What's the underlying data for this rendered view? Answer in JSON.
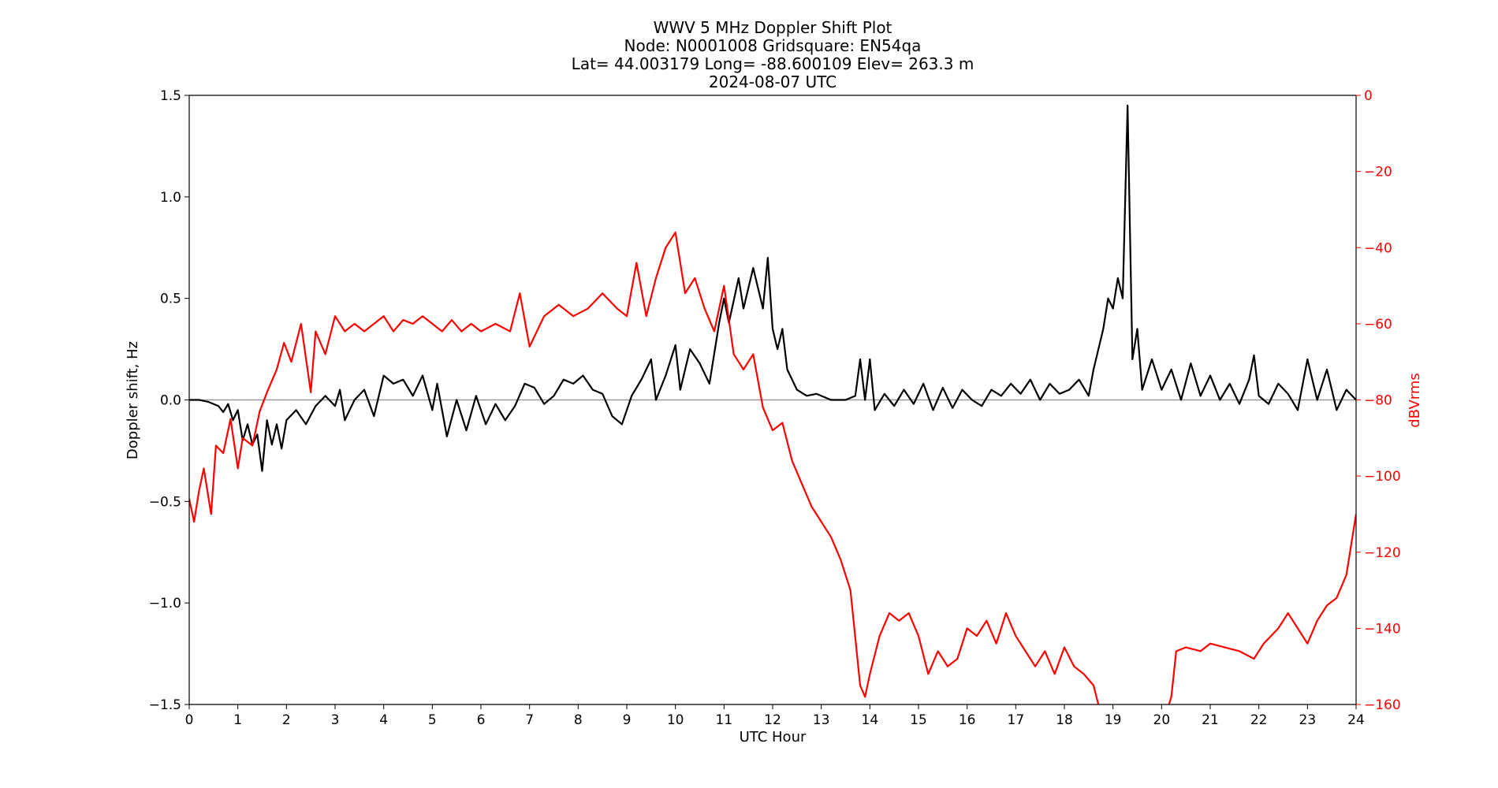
{
  "chart_data": {
    "type": "line",
    "title_lines": [
      "WWV 5 MHz Doppler Shift Plot",
      "Node:  N0001008     Gridsquare:  EN54qa",
      "Lat= 44.003179    Long= -88.600109    Elev= 263.3 m",
      "2024-08-07  UTC"
    ],
    "xlabel": "UTC Hour",
    "ylabel_left": "Doppler shift, Hz",
    "ylabel_right": "dBVrms",
    "xlim": [
      0,
      24
    ],
    "ylim_left": [
      -1.5,
      1.5
    ],
    "ylim_right": [
      -160,
      0
    ],
    "x_ticks": [
      "0",
      "1",
      "2",
      "3",
      "4",
      "5",
      "6",
      "7",
      "8",
      "9",
      "10",
      "11",
      "12",
      "13",
      "14",
      "15",
      "16",
      "17",
      "18",
      "19",
      "20",
      "21",
      "22",
      "23",
      "24"
    ],
    "y_ticks_left": [
      "1.5",
      "1.0",
      "0.5",
      "0.0",
      "−0.5",
      "−1.0",
      "−1.5"
    ],
    "y_ticks_right": [
      "0",
      "−20",
      "−40",
      "−60",
      "−80",
      "−100",
      "−120",
      "−140",
      "−160"
    ],
    "zero_line": 0,
    "colors": {
      "doppler": "#000000",
      "power": "#ff0000",
      "zero_line": "#999999",
      "axis": "#000000"
    },
    "series": [
      {
        "axis": "left",
        "color": "#000000",
        "points": [
          [
            0,
            0
          ],
          [
            0.2,
            0
          ],
          [
            0.4,
            -0.01
          ],
          [
            0.6,
            -0.03
          ],
          [
            0.7,
            -0.06
          ],
          [
            0.8,
            -0.02
          ],
          [
            0.9,
            -0.1
          ],
          [
            1.0,
            -0.05
          ],
          [
            1.1,
            -0.2
          ],
          [
            1.2,
            -0.12
          ],
          [
            1.3,
            -0.22
          ],
          [
            1.4,
            -0.17
          ],
          [
            1.5,
            -0.35
          ],
          [
            1.6,
            -0.1
          ],
          [
            1.7,
            -0.22
          ],
          [
            1.8,
            -0.12
          ],
          [
            1.9,
            -0.24
          ],
          [
            2.0,
            -0.1
          ],
          [
            2.2,
            -0.05
          ],
          [
            2.4,
            -0.12
          ],
          [
            2.6,
            -0.03
          ],
          [
            2.8,
            0.02
          ],
          [
            3.0,
            -0.03
          ],
          [
            3.1,
            0.05
          ],
          [
            3.2,
            -0.1
          ],
          [
            3.4,
            0.0
          ],
          [
            3.6,
            0.05
          ],
          [
            3.8,
            -0.08
          ],
          [
            4.0,
            0.12
          ],
          [
            4.2,
            0.08
          ],
          [
            4.4,
            0.1
          ],
          [
            4.6,
            0.02
          ],
          [
            4.8,
            0.12
          ],
          [
            5.0,
            -0.05
          ],
          [
            5.1,
            0.08
          ],
          [
            5.3,
            -0.18
          ],
          [
            5.5,
            0.0
          ],
          [
            5.7,
            -0.15
          ],
          [
            5.9,
            0.02
          ],
          [
            6.1,
            -0.12
          ],
          [
            6.3,
            -0.02
          ],
          [
            6.5,
            -0.1
          ],
          [
            6.7,
            -0.03
          ],
          [
            6.9,
            0.08
          ],
          [
            7.1,
            0.06
          ],
          [
            7.3,
            -0.02
          ],
          [
            7.5,
            0.02
          ],
          [
            7.7,
            0.1
          ],
          [
            7.9,
            0.08
          ],
          [
            8.1,
            0.12
          ],
          [
            8.3,
            0.05
          ],
          [
            8.5,
            0.03
          ],
          [
            8.7,
            -0.08
          ],
          [
            8.9,
            -0.12
          ],
          [
            9.1,
            0.02
          ],
          [
            9.3,
            0.1
          ],
          [
            9.5,
            0.2
          ],
          [
            9.6,
            0.0
          ],
          [
            9.8,
            0.12
          ],
          [
            10.0,
            0.27
          ],
          [
            10.1,
            0.05
          ],
          [
            10.3,
            0.25
          ],
          [
            10.5,
            0.18
          ],
          [
            10.7,
            0.08
          ],
          [
            10.9,
            0.38
          ],
          [
            11.0,
            0.5
          ],
          [
            11.1,
            0.38
          ],
          [
            11.3,
            0.6
          ],
          [
            11.4,
            0.45
          ],
          [
            11.6,
            0.65
          ],
          [
            11.8,
            0.45
          ],
          [
            11.9,
            0.7
          ],
          [
            12.0,
            0.35
          ],
          [
            12.1,
            0.25
          ],
          [
            12.2,
            0.35
          ],
          [
            12.3,
            0.15
          ],
          [
            12.5,
            0.05
          ],
          [
            12.7,
            0.02
          ],
          [
            12.9,
            0.03
          ],
          [
            13.2,
            0.0
          ],
          [
            13.5,
            0.0
          ],
          [
            13.7,
            0.02
          ],
          [
            13.8,
            0.2
          ],
          [
            13.9,
            0.0
          ],
          [
            14.0,
            0.2
          ],
          [
            14.1,
            -0.05
          ],
          [
            14.3,
            0.03
          ],
          [
            14.5,
            -0.03
          ],
          [
            14.7,
            0.05
          ],
          [
            14.9,
            -0.02
          ],
          [
            15.1,
            0.08
          ],
          [
            15.3,
            -0.05
          ],
          [
            15.5,
            0.06
          ],
          [
            15.7,
            -0.04
          ],
          [
            15.9,
            0.05
          ],
          [
            16.1,
            0.0
          ],
          [
            16.3,
            -0.03
          ],
          [
            16.5,
            0.05
          ],
          [
            16.7,
            0.02
          ],
          [
            16.9,
            0.08
          ],
          [
            17.1,
            0.03
          ],
          [
            17.3,
            0.1
          ],
          [
            17.5,
            0.0
          ],
          [
            17.7,
            0.08
          ],
          [
            17.9,
            0.03
          ],
          [
            18.1,
            0.05
          ],
          [
            18.3,
            0.1
          ],
          [
            18.5,
            0.02
          ],
          [
            18.6,
            0.15
          ],
          [
            18.7,
            0.25
          ],
          [
            18.8,
            0.35
          ],
          [
            18.9,
            0.5
          ],
          [
            19.0,
            0.45
          ],
          [
            19.1,
            0.6
          ],
          [
            19.2,
            0.5
          ],
          [
            19.3,
            1.45
          ],
          [
            19.4,
            0.2
          ],
          [
            19.5,
            0.35
          ],
          [
            19.6,
            0.05
          ],
          [
            19.8,
            0.2
          ],
          [
            20.0,
            0.05
          ],
          [
            20.2,
            0.15
          ],
          [
            20.4,
            0.0
          ],
          [
            20.6,
            0.18
          ],
          [
            20.8,
            0.02
          ],
          [
            21.0,
            0.12
          ],
          [
            21.2,
            0.0
          ],
          [
            21.4,
            0.08
          ],
          [
            21.6,
            -0.02
          ],
          [
            21.8,
            0.1
          ],
          [
            21.9,
            0.22
          ],
          [
            22.0,
            0.02
          ],
          [
            22.2,
            -0.02
          ],
          [
            22.4,
            0.08
          ],
          [
            22.6,
            0.03
          ],
          [
            22.8,
            -0.05
          ],
          [
            23.0,
            0.2
          ],
          [
            23.2,
            0.0
          ],
          [
            23.4,
            0.15
          ],
          [
            23.6,
            -0.05
          ],
          [
            23.8,
            0.05
          ],
          [
            24.0,
            0.0
          ]
        ]
      },
      {
        "axis": "right",
        "color": "#ff0000",
        "points": [
          [
            0,
            -106
          ],
          [
            0.1,
            -112
          ],
          [
            0.2,
            -104
          ],
          [
            0.3,
            -98
          ],
          [
            0.45,
            -110
          ],
          [
            0.55,
            -92
          ],
          [
            0.7,
            -94
          ],
          [
            0.85,
            -85
          ],
          [
            1.0,
            -98
          ],
          [
            1.1,
            -90
          ],
          [
            1.3,
            -92
          ],
          [
            1.45,
            -83
          ],
          [
            1.6,
            -78
          ],
          [
            1.8,
            -72
          ],
          [
            1.95,
            -65
          ],
          [
            2.1,
            -70
          ],
          [
            2.3,
            -60
          ],
          [
            2.5,
            -78
          ],
          [
            2.6,
            -62
          ],
          [
            2.8,
            -68
          ],
          [
            3.0,
            -58
          ],
          [
            3.2,
            -62
          ],
          [
            3.4,
            -60
          ],
          [
            3.6,
            -62
          ],
          [
            3.8,
            -60
          ],
          [
            4.0,
            -58
          ],
          [
            4.2,
            -62
          ],
          [
            4.4,
            -59
          ],
          [
            4.6,
            -60
          ],
          [
            4.8,
            -58
          ],
          [
            5.0,
            -60
          ],
          [
            5.2,
            -62
          ],
          [
            5.4,
            -59
          ],
          [
            5.6,
            -62
          ],
          [
            5.8,
            -60
          ],
          [
            6.0,
            -62
          ],
          [
            6.3,
            -60
          ],
          [
            6.6,
            -62
          ],
          [
            6.8,
            -52
          ],
          [
            7.0,
            -66
          ],
          [
            7.3,
            -58
          ],
          [
            7.6,
            -55
          ],
          [
            7.9,
            -58
          ],
          [
            8.2,
            -56
          ],
          [
            8.5,
            -52
          ],
          [
            8.8,
            -56
          ],
          [
            9.0,
            -58
          ],
          [
            9.2,
            -44
          ],
          [
            9.4,
            -58
          ],
          [
            9.6,
            -48
          ],
          [
            9.8,
            -40
          ],
          [
            10.0,
            -36
          ],
          [
            10.2,
            -52
          ],
          [
            10.4,
            -48
          ],
          [
            10.6,
            -56
          ],
          [
            10.8,
            -62
          ],
          [
            11.0,
            -50
          ],
          [
            11.2,
            -68
          ],
          [
            11.4,
            -72
          ],
          [
            11.6,
            -68
          ],
          [
            11.8,
            -82
          ],
          [
            12.0,
            -88
          ],
          [
            12.2,
            -86
          ],
          [
            12.4,
            -96
          ],
          [
            12.6,
            -102
          ],
          [
            12.8,
            -108
          ],
          [
            13.0,
            -112
          ],
          [
            13.2,
            -116
          ],
          [
            13.4,
            -122
          ],
          [
            13.6,
            -130
          ],
          [
            13.8,
            -155
          ],
          [
            13.9,
            -158
          ],
          [
            14.0,
            -152
          ],
          [
            14.2,
            -142
          ],
          [
            14.4,
            -136
          ],
          [
            14.6,
            -138
          ],
          [
            14.8,
            -136
          ],
          [
            15.0,
            -142
          ],
          [
            15.2,
            -152
          ],
          [
            15.4,
            -146
          ],
          [
            15.6,
            -150
          ],
          [
            15.8,
            -148
          ],
          [
            16.0,
            -140
          ],
          [
            16.2,
            -142
          ],
          [
            16.4,
            -138
          ],
          [
            16.6,
            -144
          ],
          [
            16.8,
            -136
          ],
          [
            17.0,
            -142
          ],
          [
            17.2,
            -146
          ],
          [
            17.4,
            -150
          ],
          [
            17.6,
            -146
          ],
          [
            17.8,
            -152
          ],
          [
            18.0,
            -145
          ],
          [
            18.2,
            -150
          ],
          [
            18.4,
            -152
          ],
          [
            18.6,
            -155
          ],
          [
            18.7,
            -160
          ],
          [
            19.0,
            -165
          ],
          [
            19.5,
            -170
          ],
          [
            20.0,
            -166
          ],
          [
            20.2,
            -158
          ],
          [
            20.3,
            -146
          ],
          [
            20.5,
            -145
          ],
          [
            20.8,
            -146
          ],
          [
            21.0,
            -144
          ],
          [
            21.3,
            -145
          ],
          [
            21.6,
            -146
          ],
          [
            21.9,
            -148
          ],
          [
            22.1,
            -144
          ],
          [
            22.4,
            -140
          ],
          [
            22.6,
            -136
          ],
          [
            22.8,
            -140
          ],
          [
            23.0,
            -144
          ],
          [
            23.2,
            -138
          ],
          [
            23.4,
            -134
          ],
          [
            23.6,
            -132
          ],
          [
            23.8,
            -126
          ],
          [
            23.9,
            -118
          ],
          [
            24.0,
            -110
          ]
        ]
      }
    ]
  }
}
